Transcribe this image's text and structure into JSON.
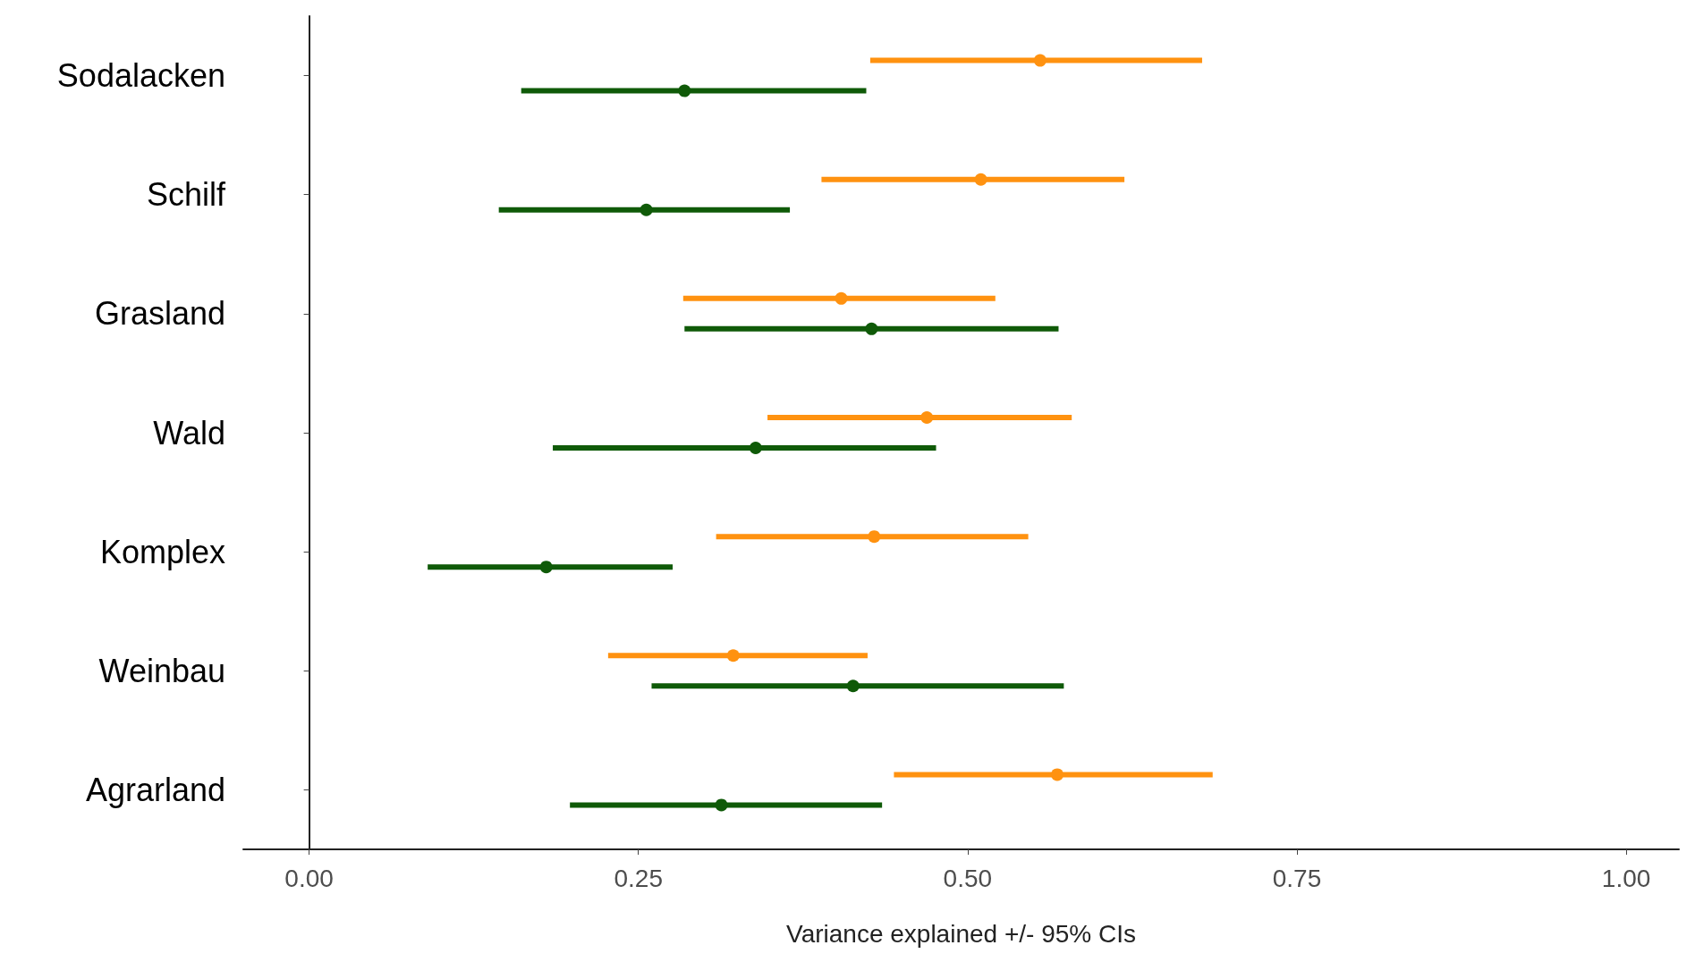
{
  "chart_data": {
    "type": "scatter",
    "orientation": "horizontal",
    "xlabel": "Variance explained +/- 95% CIs",
    "categories": [
      "Sodalacken",
      "Schilf",
      "Grasland",
      "Wald",
      "Komplex",
      "Weinbau",
      "Agrarland"
    ],
    "series": [
      {
        "color": "#ff9210",
        "values": [
          0.555,
          0.51,
          0.404,
          0.469,
          0.429,
          0.322,
          0.568
        ],
        "errors": [
          [
            0.426,
            0.678
          ],
          [
            0.389,
            0.619
          ],
          [
            0.284,
            0.521
          ],
          [
            0.348,
            0.579
          ],
          [
            0.309,
            0.546
          ],
          [
            0.227,
            0.424
          ],
          [
            0.444,
            0.686
          ]
        ]
      },
      {
        "color": "#0f5a08",
        "values": [
          0.285,
          0.256,
          0.427,
          0.339,
          0.18,
          0.413,
          0.313
        ],
        "errors": [
          [
            0.161,
            0.423
          ],
          [
            0.144,
            0.365
          ],
          [
            0.285,
            0.569
          ],
          [
            0.185,
            0.476
          ],
          [
            0.09,
            0.276
          ],
          [
            0.26,
            0.573
          ],
          [
            0.198,
            0.435
          ]
        ]
      }
    ],
    "xlim": [
      -0.05,
      1.04
    ],
    "xticks": [
      {
        "value": 0,
        "label": "0.00"
      },
      {
        "value": 0.25,
        "label": "0.25"
      },
      {
        "value": 0.5,
        "label": "0.50"
      },
      {
        "value": 0.75,
        "label": "0.75"
      },
      {
        "value": 1,
        "label": "1.00"
      }
    ],
    "marker": "circle"
  }
}
